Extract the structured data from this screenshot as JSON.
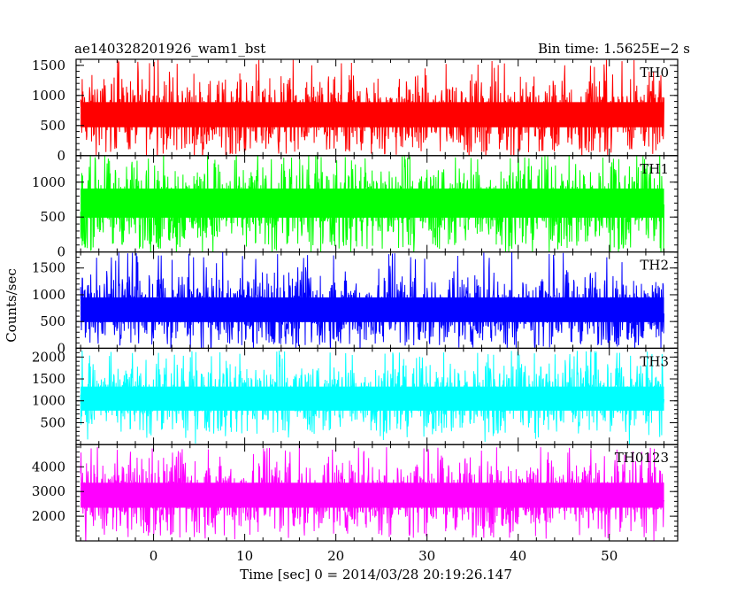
{
  "header": {
    "title": "ae140328201926_wam1_bst",
    "bin_time": "Bin time: 1.5625E−2 s"
  },
  "chart_data": {
    "type": "line",
    "title": "ae140328201926_wam1_bst",
    "xlabel": "Time [sec] 0 = 2014/03/28 20:19:26.147",
    "ylabel": "Counts/sec",
    "xlim": [
      -8.5,
      57.5
    ],
    "x_data_range": [
      -8,
      56
    ],
    "x_major_ticks": [
      0,
      10,
      20,
      30,
      40,
      50
    ],
    "x_minor_step": 2,
    "grid": false,
    "panels": [
      {
        "name": "TH0",
        "color": "#ff0000",
        "ylim": [
          0,
          1600
        ],
        "y_major_ticks": [
          0,
          500,
          1000,
          1500
        ],
        "y_minor_step": 100,
        "mean": 680,
        "typical_low": 200,
        "typical_high": 1150,
        "max": 1600,
        "min": 50
      },
      {
        "name": "TH1",
        "color": "#00ff00",
        "ylim": [
          0,
          1380
        ],
        "y_major_ticks": [
          0,
          500,
          1000
        ],
        "y_minor_step": 100,
        "mean": 700,
        "typical_low": 200,
        "typical_high": 1150,
        "max": 1380,
        "min": 40
      },
      {
        "name": "TH2",
        "color": "#0000ff",
        "ylim": [
          0,
          1800
        ],
        "y_major_ticks": [
          0,
          500,
          1000,
          1500
        ],
        "y_minor_step": 100,
        "mean": 720,
        "typical_low": 200,
        "typical_high": 1250,
        "max": 1800,
        "min": 50
      },
      {
        "name": "TH3",
        "color": "#00ffff",
        "ylim": [
          0,
          2200
        ],
        "y_major_ticks": [
          500,
          1000,
          1500,
          2000
        ],
        "y_minor_step": 100,
        "mean": 1050,
        "typical_low": 450,
        "typical_high": 1700,
        "max": 2150,
        "min": 250
      },
      {
        "name": "TH0123",
        "color": "#ff00ff",
        "ylim": [
          1000,
          4900
        ],
        "y_major_ticks": [
          2000,
          3000,
          4000
        ],
        "y_minor_step": 200,
        "mean": 2850,
        "typical_low": 1700,
        "typical_high": 4000,
        "max": 4800,
        "min": 1100
      }
    ]
  }
}
